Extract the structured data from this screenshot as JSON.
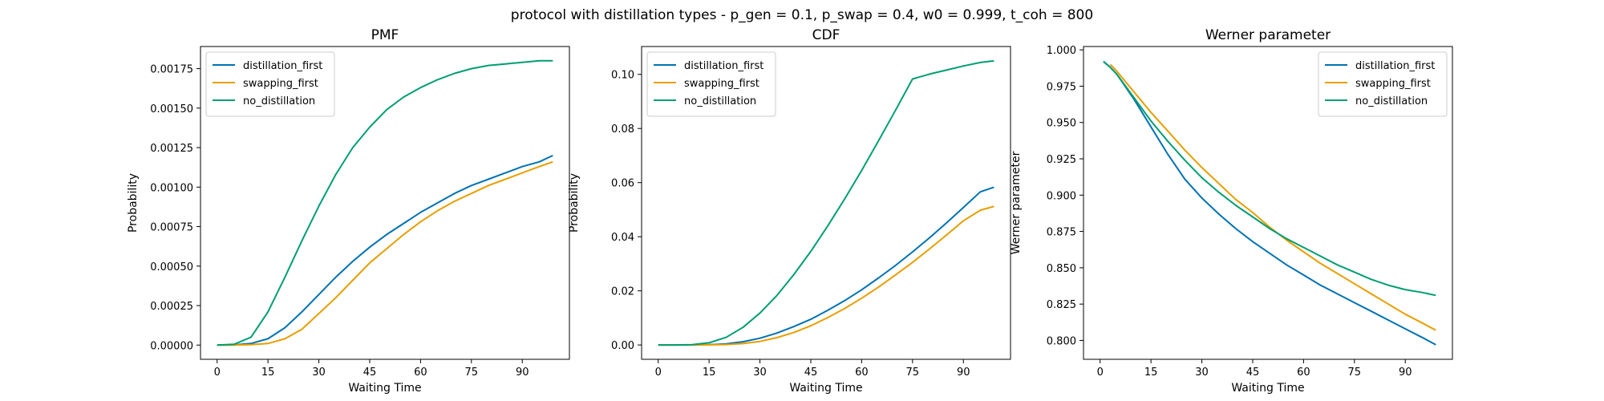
{
  "figure": {
    "suptitle": "protocol with distillation types - p_gen = 0.1, p_swap = 0.4, w0 = 0.999, t_coh = 800"
  },
  "colors": {
    "distillation_first": "#0072B2",
    "swapping_first": "#E69F00",
    "no_distillation": "#009E73"
  },
  "chart_data": [
    {
      "type": "line",
      "title": "PMF",
      "xlabel": "Waiting Time",
      "ylabel": "Probability",
      "xlim": [
        -4.9,
        103.9
      ],
      "ylim": [
        -9e-05,
        0.00189
      ],
      "xticks": [
        0,
        15,
        30,
        45,
        60,
        75,
        90
      ],
      "yticks": [
        0.0,
        0.00025,
        0.0005,
        0.00075,
        0.001,
        0.00125,
        0.0015,
        0.00175
      ],
      "ytick_labels": [
        "0.00000",
        "0.00025",
        "0.00050",
        "0.00075",
        "0.00100",
        "0.00125",
        "0.00150",
        "0.00175"
      ],
      "legend_position": "upper left",
      "x": [
        0,
        5,
        10,
        15,
        20,
        25,
        30,
        35,
        40,
        45,
        50,
        55,
        60,
        65,
        70,
        75,
        80,
        85,
        90,
        95,
        99
      ],
      "series": [
        {
          "name": "distillation_first",
          "color_key": "distillation_first",
          "values": [
            0,
            1e-06,
            1e-05,
            4e-05,
            0.00011,
            0.00021,
            0.00032,
            0.00043,
            0.00053,
            0.00062,
            0.0007,
            0.00077,
            0.00084,
            0.0009,
            0.00096,
            0.00101,
            0.00105,
            0.00109,
            0.00113,
            0.00116,
            0.0012
          ]
        },
        {
          "name": "swapping_first",
          "color_key": "swapping_first",
          "values": [
            0,
            0,
            3e-06,
            1e-05,
            4e-05,
            0.0001,
            0.0002,
            0.0003,
            0.00041,
            0.00052,
            0.00061,
            0.0007,
            0.00078,
            0.00085,
            0.00091,
            0.00096,
            0.00101,
            0.00105,
            0.00109,
            0.00113,
            0.00116
          ]
        },
        {
          "name": "no_distillation",
          "color_key": "no_distillation",
          "values": [
            0,
            5e-06,
            5e-05,
            0.00021,
            0.00043,
            0.00066,
            0.00088,
            0.00108,
            0.00125,
            0.00138,
            0.00149,
            0.00157,
            0.00163,
            0.00168,
            0.00172,
            0.00175,
            0.00177,
            0.00178,
            0.00179,
            0.0018,
            0.0018
          ]
        }
      ]
    },
    {
      "type": "line",
      "title": "CDF",
      "xlabel": "Waiting Time",
      "ylabel": "Probability",
      "xlim": [
        -4.9,
        103.9
      ],
      "ylim": [
        -0.0053,
        0.1103
      ],
      "xticks": [
        0,
        15,
        30,
        45,
        60,
        75,
        90
      ],
      "yticks": [
        0.0,
        0.02,
        0.04,
        0.06,
        0.08,
        0.1
      ],
      "ytick_labels": [
        "0.00",
        "0.02",
        "0.04",
        "0.06",
        "0.08",
        "0.10"
      ],
      "legend_position": "upper left",
      "x": [
        0,
        5,
        10,
        15,
        20,
        25,
        30,
        35,
        40,
        45,
        50,
        55,
        60,
        65,
        70,
        75,
        80,
        85,
        90,
        95,
        99
      ],
      "series": [
        {
          "name": "distillation_first",
          "color_key": "distillation_first",
          "values": [
            0,
            0,
            2e-05,
            0.0001,
            0.0004,
            0.0012,
            0.0025,
            0.0044,
            0.0068,
            0.0095,
            0.0128,
            0.0164,
            0.0204,
            0.0248,
            0.0294,
            0.0344,
            0.0396,
            0.0451,
            0.0508,
            0.0566,
            0.0583
          ]
        },
        {
          "name": "swapping_first",
          "color_key": "swapping_first",
          "values": [
            0,
            0,
            0,
            3e-05,
            0.00015,
            0.0005,
            0.0013,
            0.0027,
            0.0046,
            0.0071,
            0.0101,
            0.0135,
            0.0173,
            0.0214,
            0.0259,
            0.0305,
            0.0355,
            0.0406,
            0.0459,
            0.0498,
            0.0512
          ]
        },
        {
          "name": "no_distillation",
          "color_key": "no_distillation",
          "values": [
            0,
            0,
            0.0001,
            0.0008,
            0.0028,
            0.0065,
            0.0118,
            0.0183,
            0.026,
            0.0346,
            0.044,
            0.054,
            0.0645,
            0.0755,
            0.0868,
            0.0983,
            0.1001,
            0.1016,
            0.1031,
            0.1044,
            0.105
          ]
        }
      ]
    },
    {
      "type": "line",
      "title": "Werner parameter",
      "xlabel": "Waiting Time",
      "ylabel": "Werner parameter",
      "xlim": [
        -4.9,
        103.9
      ],
      "ylim": [
        0.787,
        1.0023
      ],
      "xticks": [
        0,
        15,
        30,
        45,
        60,
        75,
        90
      ],
      "yticks": [
        0.8,
        0.825,
        0.85,
        0.875,
        0.9,
        0.925,
        0.95,
        0.975,
        1.0
      ],
      "ytick_labels": [
        "0.800",
        "0.825",
        "0.850",
        "0.875",
        "0.900",
        "0.925",
        "0.950",
        "0.975",
        "1.000"
      ],
      "legend_position": "upper right",
      "x": [
        1,
        3,
        5,
        10,
        15,
        20,
        25,
        30,
        35,
        40,
        45,
        50,
        55,
        60,
        65,
        70,
        75,
        80,
        85,
        90,
        95,
        99
      ],
      "series": [
        {
          "name": "distillation_first",
          "color_key": "distillation_first",
          "values": [
            0.992,
            0.988,
            0.983,
            0.966,
            0.947,
            0.928,
            0.911,
            0.898,
            0.887,
            0.877,
            0.868,
            0.86,
            0.852,
            0.845,
            0.838,
            0.832,
            0.826,
            0.82,
            0.814,
            0.808,
            0.802,
            0.797
          ]
        },
        {
          "name": "swapping_first",
          "color_key": "swapping_first",
          "values": [
            null,
            0.99,
            0.985,
            0.971,
            0.957,
            0.944,
            0.931,
            0.919,
            0.908,
            0.897,
            0.888,
            0.878,
            0.869,
            0.861,
            0.853,
            0.846,
            0.839,
            0.832,
            0.825,
            0.818,
            0.812,
            0.807
          ]
        },
        {
          "name": "no_distillation",
          "color_key": "no_distillation",
          "values": [
            0.992,
            0.988,
            0.983,
            0.967,
            0.951,
            0.937,
            0.924,
            0.912,
            0.902,
            0.893,
            0.885,
            0.877,
            0.87,
            0.864,
            0.858,
            0.852,
            0.847,
            0.842,
            0.838,
            0.835,
            0.833,
            0.831
          ]
        }
      ]
    }
  ]
}
